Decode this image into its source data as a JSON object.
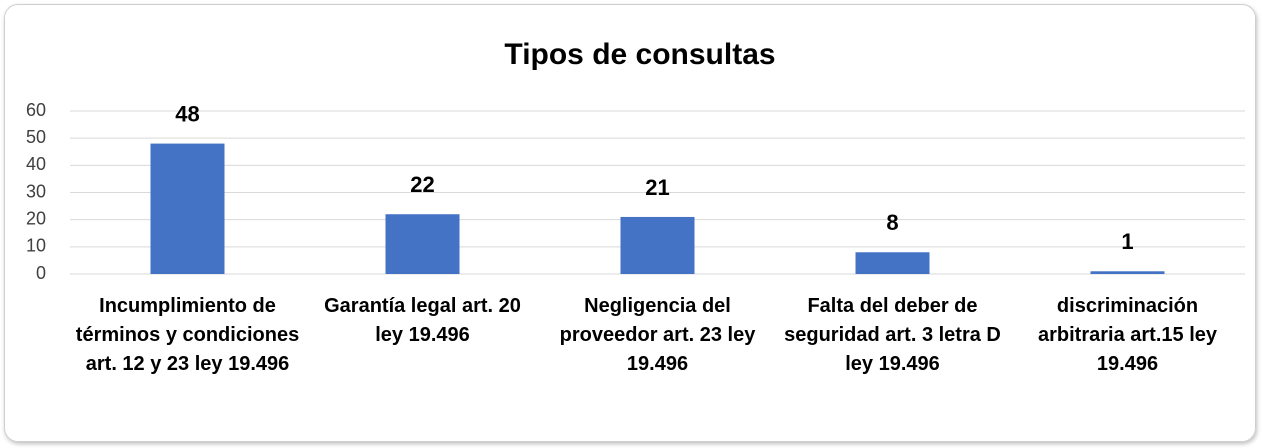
{
  "chart_data": {
    "type": "bar",
    "title": "Tipos de consultas",
    "categories": [
      "Incumplimiento de términos y condiciones art. 12 y 23 ley 19.496",
      "Garantía legal art. 20 ley 19.496",
      "Negligencia del proveedor art. 23 ley 19.496",
      "Falta del deber de seguridad art. 3 letra D ley 19.496",
      "discriminación arbitraria art.15 ley 19.496"
    ],
    "values": [
      48,
      22,
      21,
      8,
      1
    ],
    "color": "#4472c4",
    "ylim": [
      0,
      60
    ],
    "yticks": [
      0,
      10,
      20,
      30,
      40,
      50,
      60
    ],
    "grid": true
  }
}
